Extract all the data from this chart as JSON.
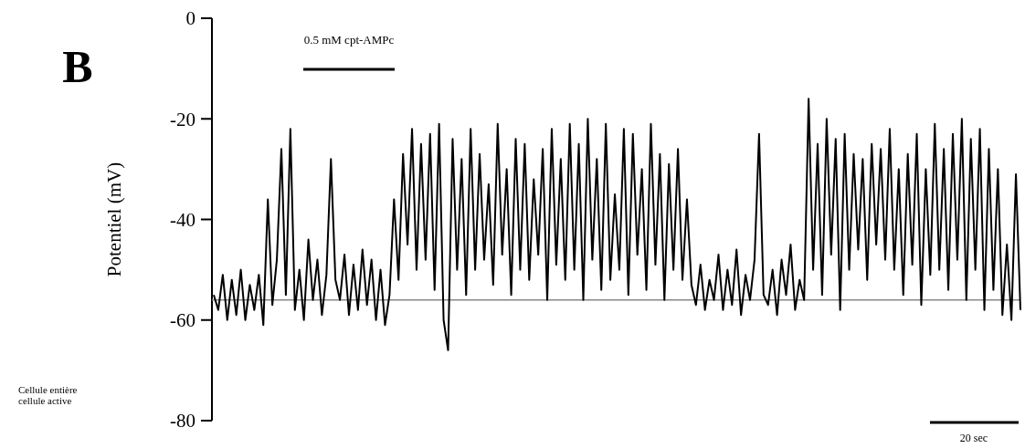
{
  "chart_data": {
    "type": "line",
    "ylabel": "Potentiel (mV)",
    "annotations": [
      "B",
      "0.5 mM cpt-AMPc",
      "Cellule entière",
      "cellule active",
      "20 sec"
    ],
    "categories": [
      null,
      null,
      null,
      null,
      null,
      null,
      null,
      null,
      null,
      null,
      null,
      null,
      null,
      null,
      null,
      null,
      null,
      null,
      null,
      null,
      null,
      null,
      null,
      null,
      null,
      null,
      null,
      null,
      null,
      null,
      null,
      null,
      null,
      null,
      null,
      null,
      null,
      null,
      null,
      null,
      null,
      null,
      null,
      null,
      null,
      null,
      null,
      null,
      null,
      null,
      null,
      null,
      null,
      null,
      null,
      null,
      null,
      null,
      null,
      null,
      null,
      null,
      null,
      null,
      null,
      null,
      null,
      null,
      null,
      null,
      null,
      null,
      null,
      null,
      null,
      null,
      null,
      null,
      null,
      null,
      null,
      null,
      null,
      null,
      null,
      null,
      null,
      null,
      null,
      null,
      null,
      null,
      null,
      null,
      null,
      null,
      null,
      null,
      null,
      null,
      null,
      null,
      null,
      null,
      null,
      null,
      null,
      null,
      null,
      null,
      null,
      null,
      null,
      null,
      null,
      null,
      null,
      null,
      null,
      null,
      null,
      null,
      null,
      null,
      null,
      null,
      null,
      null,
      null,
      null,
      null,
      null,
      null,
      null,
      null,
      null,
      null,
      null,
      null,
      null,
      null,
      null,
      null,
      null,
      null,
      null,
      null,
      null,
      null,
      null,
      null,
      null,
      null,
      null,
      null,
      null,
      null,
      null,
      null,
      null,
      null,
      null,
      null,
      null,
      null,
      null,
      null,
      null,
      null,
      null,
      null,
      null,
      null,
      null,
      null,
      null,
      null,
      null,
      null,
      null
    ],
    "series": [
      {
        "color": "#000000",
        "values": [
          -55,
          -58,
          -51,
          -60,
          -52,
          -59,
          -50,
          -60,
          -53,
          -58,
          -51,
          -61,
          -36,
          -57,
          -48,
          -26,
          -55,
          -22,
          -58,
          -50,
          -60,
          -44,
          -56,
          -48,
          -59,
          -51,
          -28,
          -52,
          -56,
          -47,
          -59,
          -49,
          -58,
          -46,
          -57,
          -48,
          -60,
          -50,
          -61,
          -55,
          -36,
          -52,
          -27,
          -45,
          -22,
          -50,
          -25,
          -48,
          -23,
          -54,
          -21,
          -60,
          -66,
          -24,
          -50,
          -28,
          -55,
          -22,
          -50,
          -27,
          -48,
          -33,
          -53,
          -21,
          -47,
          -30,
          -55,
          -24,
          -50,
          -25,
          -52,
          -32,
          -47,
          -26,
          -56,
          -22,
          -49,
          -28,
          -52,
          -21,
          -50,
          -25,
          -56,
          -20,
          -48,
          -28,
          -54,
          -21,
          -52,
          -35,
          -50,
          -22,
          -55,
          -23,
          -47,
          -30,
          -54,
          -21,
          -49,
          -27,
          -56,
          -29,
          -50,
          -26,
          -52,
          -36,
          -53,
          -57,
          -49,
          -58,
          -52,
          -56,
          -47,
          -58,
          -50,
          -57,
          -46,
          -59,
          -51,
          -56,
          -48,
          -23,
          -55,
          -57,
          -50,
          -59,
          -48,
          -55,
          -45,
          -58,
          -52,
          -56,
          -16,
          -50,
          -25,
          -55,
          -20,
          -47,
          -24,
          -58,
          -23,
          -50,
          -27,
          -46,
          -28,
          -52,
          -25,
          -45,
          -26,
          -48,
          -22,
          -50,
          -30,
          -55,
          -27,
          -49,
          -23,
          -57,
          -30,
          -51,
          -21,
          -50,
          -26,
          -54,
          -23,
          -48,
          -20,
          -56,
          -24,
          -50,
          -22,
          -58,
          -26,
          -54,
          -30,
          -59,
          -45,
          -60,
          -31,
          -58
        ]
      }
    ],
    "ylim": [
      -80,
      0
    ],
    "yticks": [
      0,
      -20,
      -40,
      -60,
      -80
    ],
    "ref_lines": [
      {
        "axis": "y",
        "value": -56,
        "color": "#888888"
      }
    ],
    "tick_labels": "y",
    "marker": "none",
    "grid": false
  }
}
